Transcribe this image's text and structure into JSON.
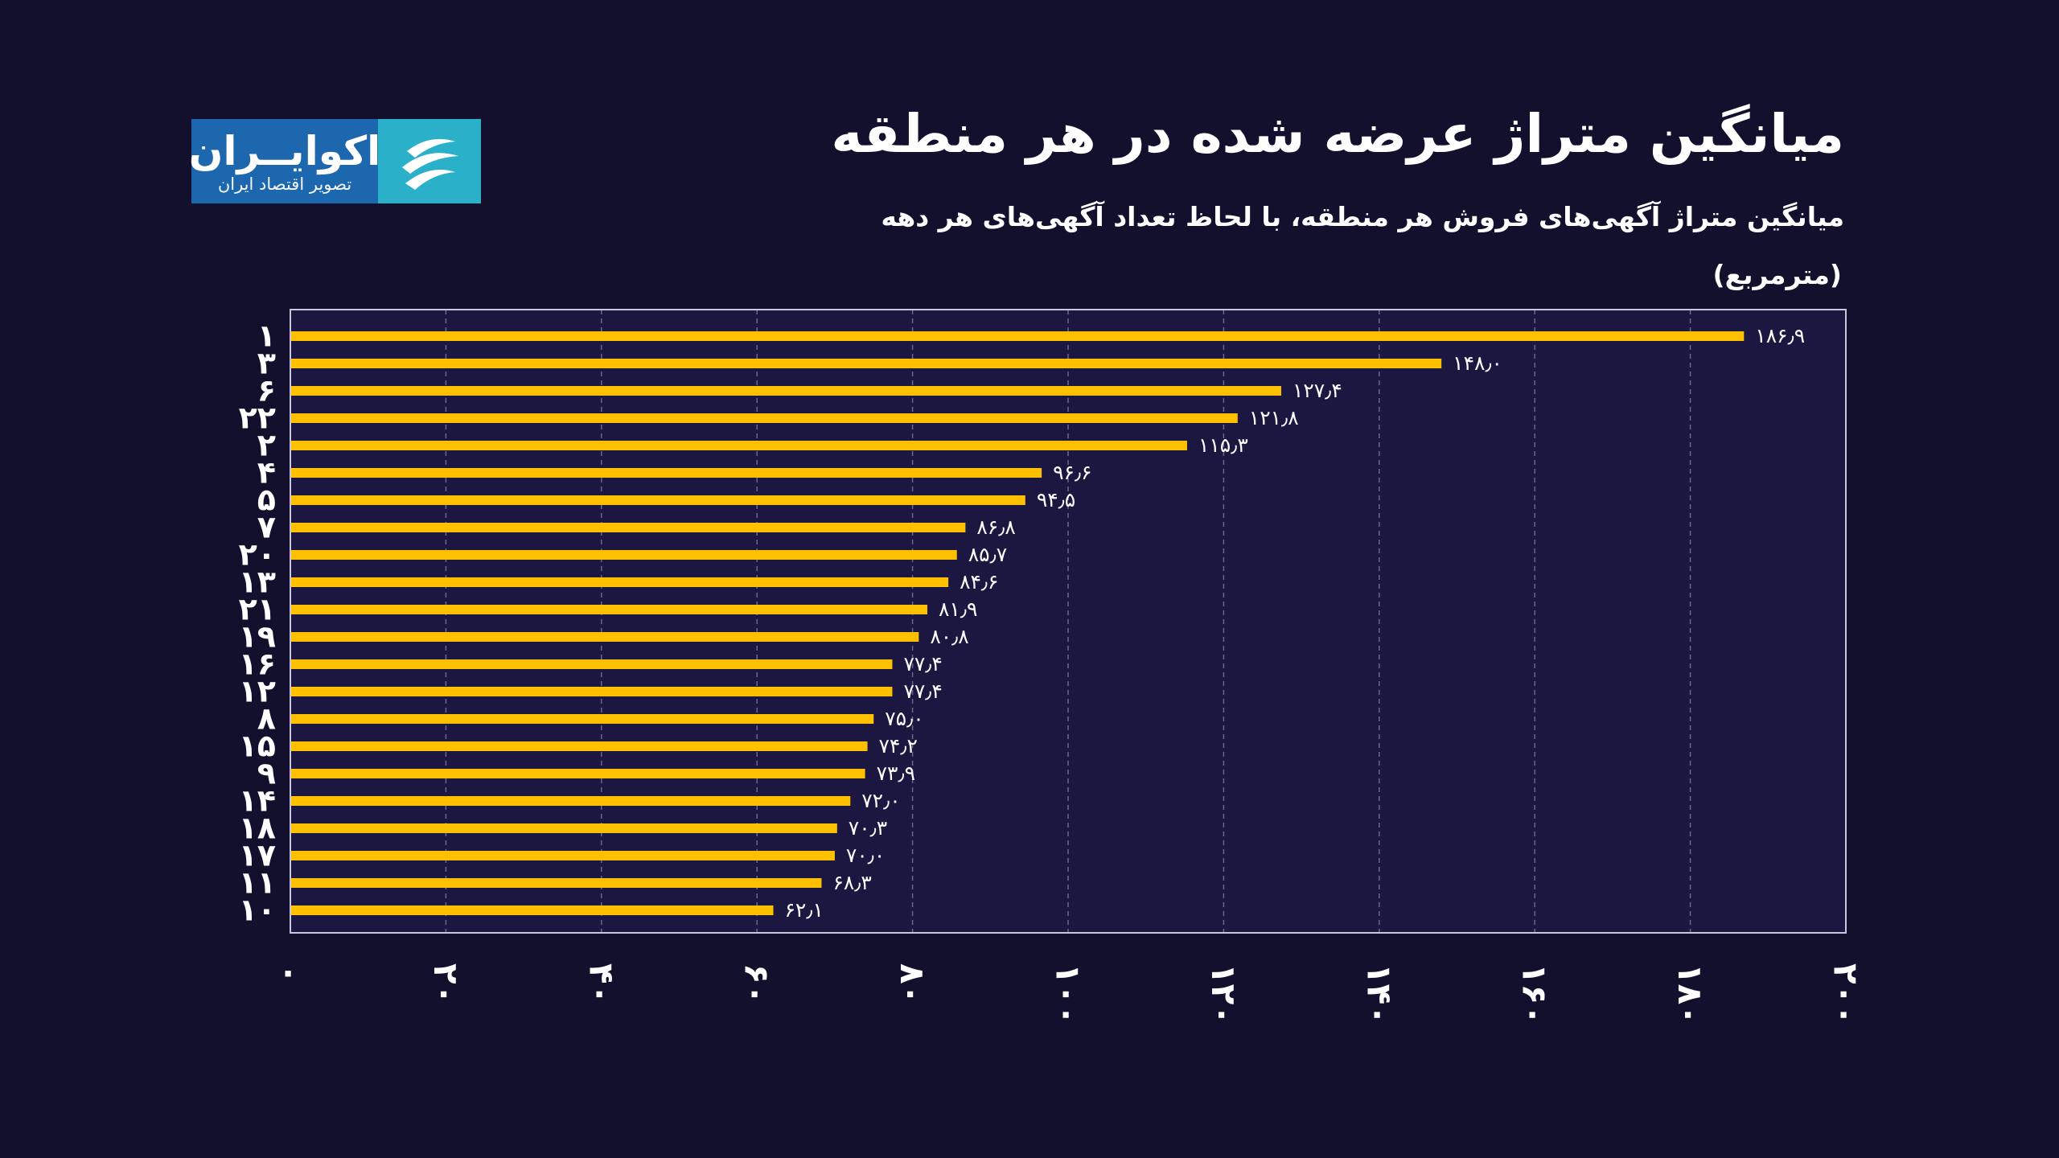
{
  "header": {
    "title": "میانگین متراژ عرضه شده در هر منطقه",
    "subtitle": "میانگین متراژ آگهی‌های فروش هر منطقه، با لحاظ تعداد آگهی‌های هر دهه",
    "unit": "(مترمربع)"
  },
  "logo": {
    "name": "اکوایــران",
    "tagline": "تصویر اقتصاد ایران",
    "icon": "ecoiran-logo-icon"
  },
  "colors": {
    "background": "#13102e",
    "plot_background": "#1c1741",
    "bar": "#ffc000",
    "grid": "#6a6690",
    "text": "#ffffff"
  },
  "chart_data": {
    "type": "bar",
    "orientation": "horizontal",
    "categories": [
      "۱",
      "۳",
      "۶",
      "۲۲",
      "۲",
      "۴",
      "۵",
      "۷",
      "۲۰",
      "۱۳",
      "۲۱",
      "۱۹",
      "۱۶",
      "۱۲",
      "۸",
      "۱۵",
      "۹",
      "۱۴",
      "۱۸",
      "۱۷",
      "۱۱",
      "۱۰"
    ],
    "values": [
      186.9,
      148.0,
      127.4,
      121.8,
      115.3,
      96.6,
      94.5,
      86.8,
      85.7,
      84.6,
      81.9,
      80.8,
      77.4,
      77.4,
      75.0,
      74.2,
      73.9,
      72.0,
      70.3,
      70.0,
      68.3,
      62.1
    ],
    "value_labels": [
      "۱۸۶٫۹",
      "۱۴۸٫۰",
      "۱۲۷٫۴",
      "۱۲۱٫۸",
      "۱۱۵٫۳",
      "۹۶٫۶",
      "۹۴٫۵",
      "۸۶٫۸",
      "۸۵٫۷",
      "۸۴٫۶",
      "۸۱٫۹",
      "۸۰٫۸",
      "۷۷٫۴",
      "۷۷٫۴",
      "۷۵٫۰",
      "۷۴٫۲",
      "۷۳٫۹",
      "۷۲٫۰",
      "۷۰٫۳",
      "۷۰٫۰",
      "۶۸٫۳",
      "۶۲٫۱"
    ],
    "xlim": [
      0,
      200
    ],
    "xticks": [
      0,
      20,
      40,
      60,
      80,
      100,
      120,
      140,
      160,
      180,
      200
    ],
    "xtick_labels": [
      "۰",
      "۲۰",
      "۴۰",
      "۶۰",
      "۸۰",
      "۱۰۰",
      "۱۲۰",
      "۱۴۰",
      "۱۶۰",
      "۱۸۰",
      "۲۰۰"
    ],
    "grid": "vertical-dashed",
    "legend": "none"
  }
}
